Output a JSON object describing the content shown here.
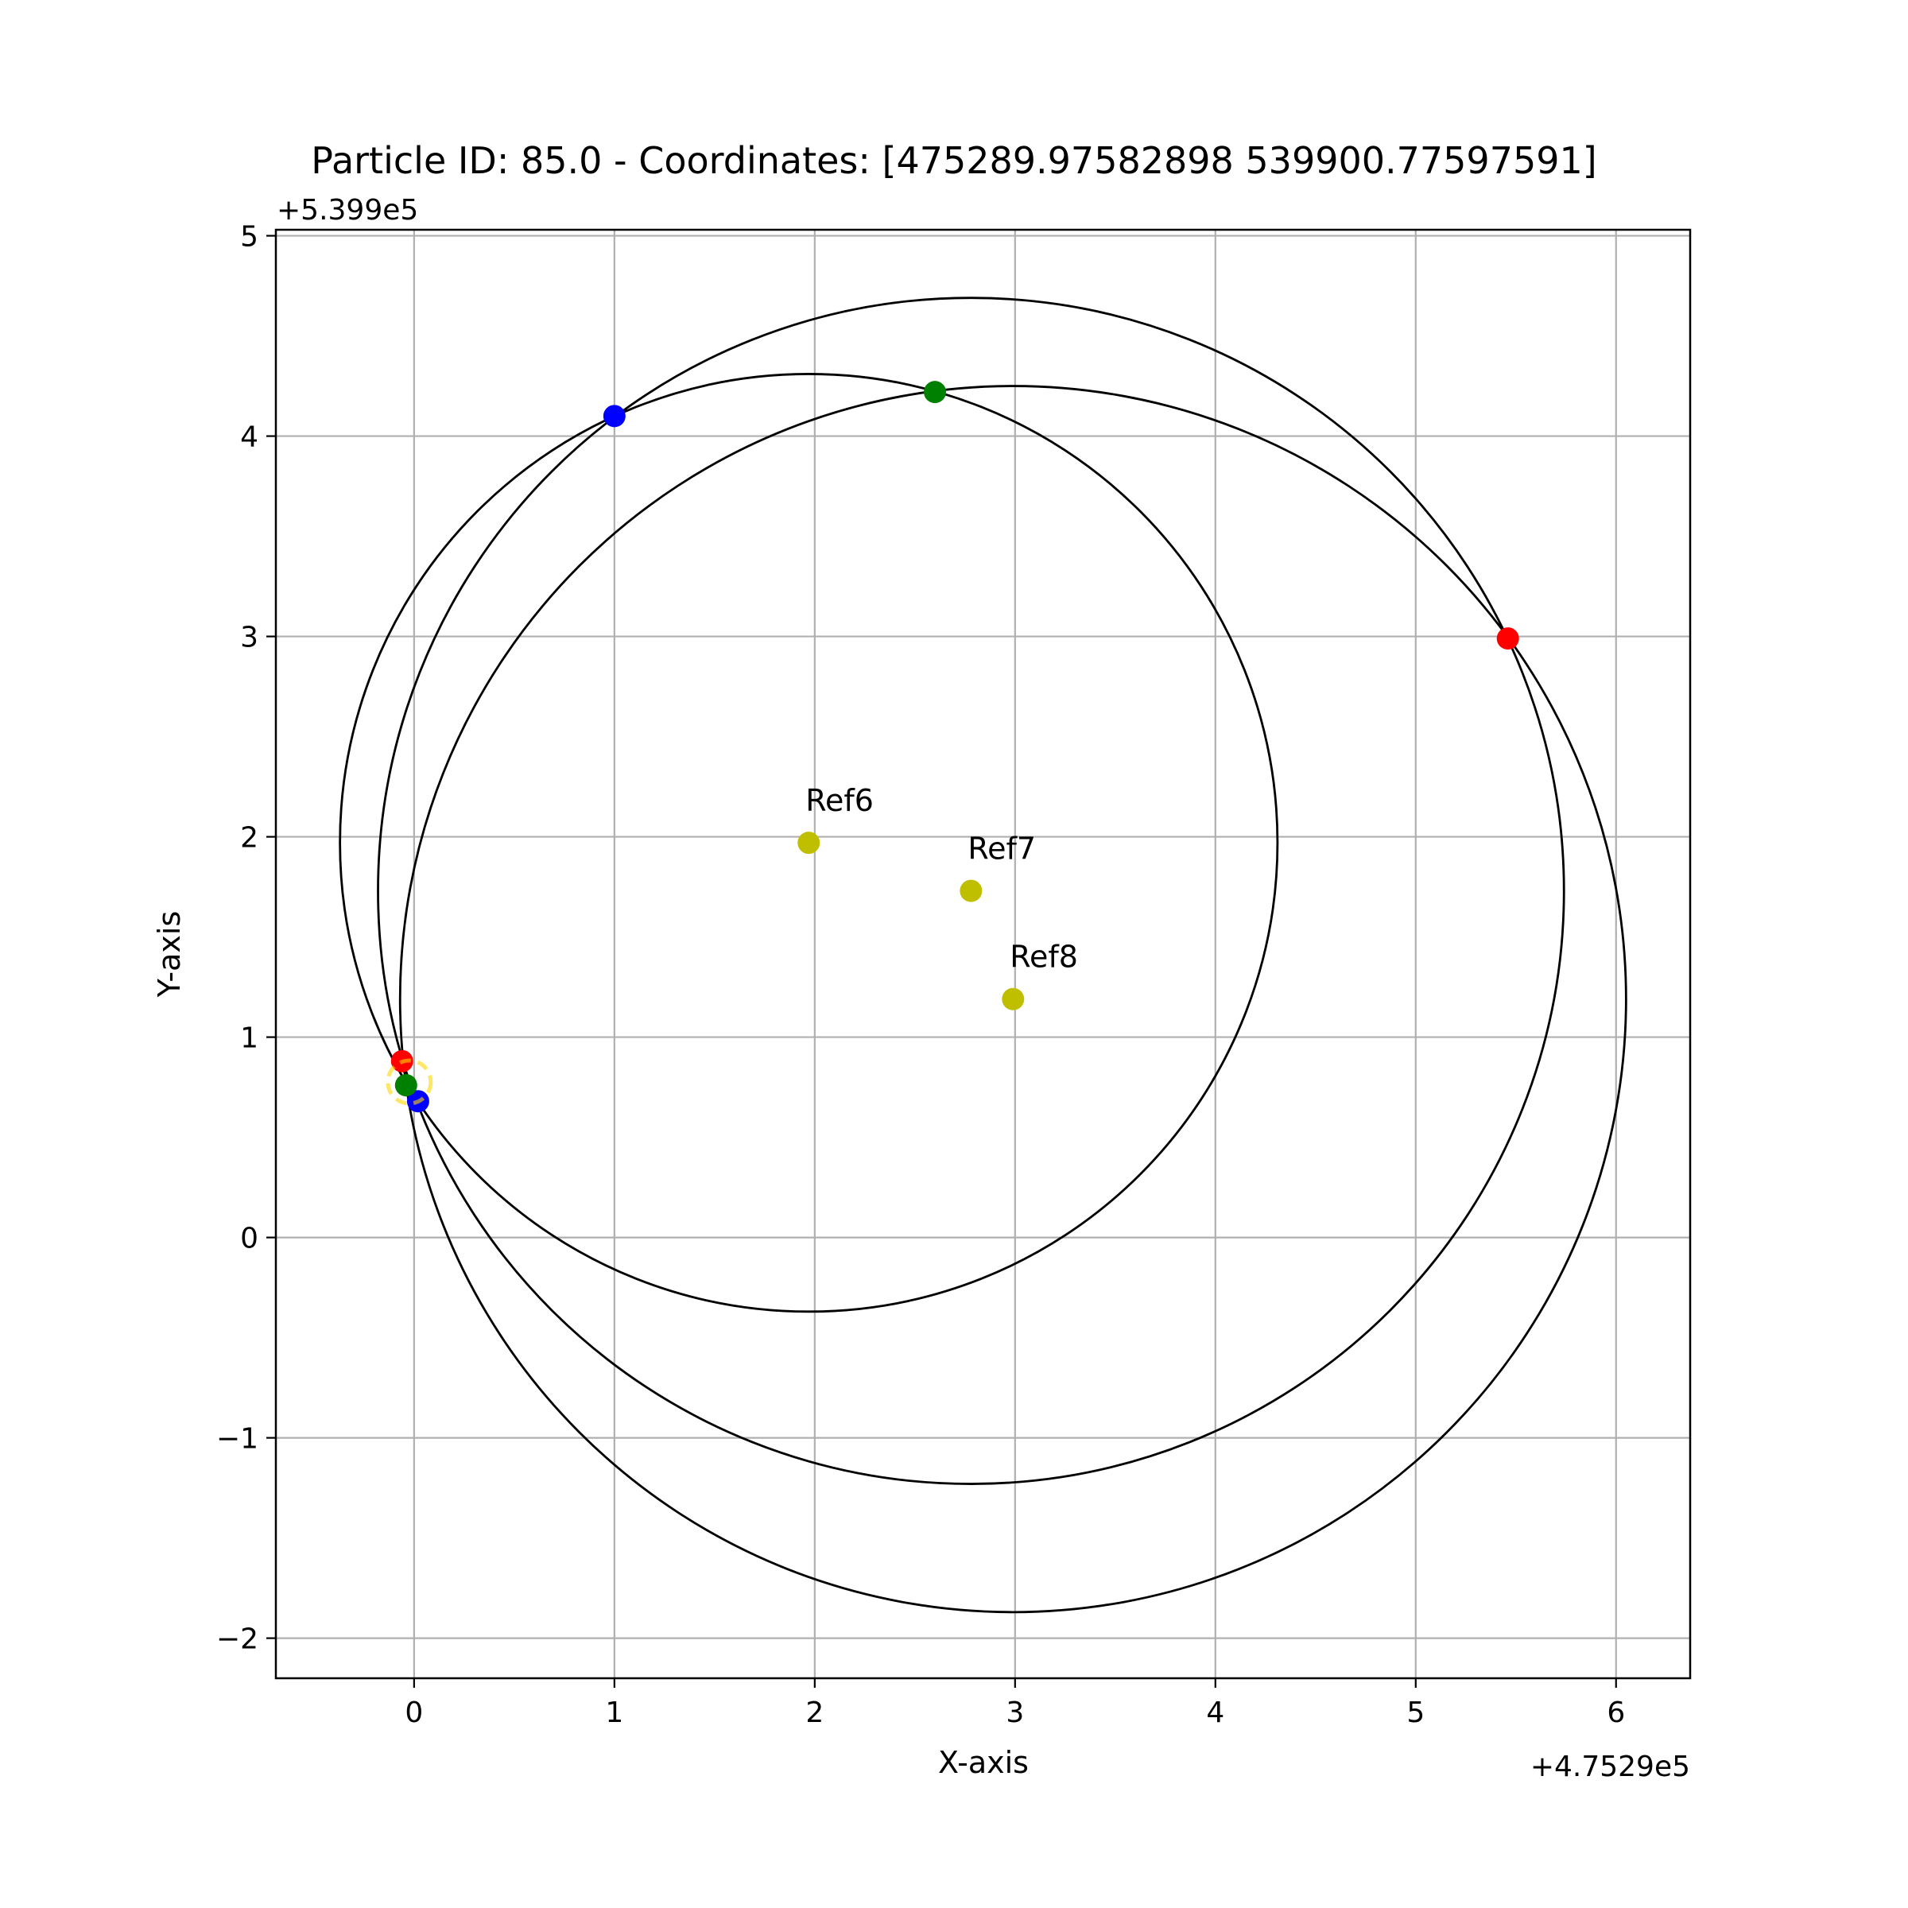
{
  "chart_data": {
    "type": "scatter",
    "title": "Particle ID: 85.0 - Coordinates: [475289.97582898 539900.77597591]",
    "xlabel": "X-axis",
    "ylabel": "Y-axis",
    "x_offset_label": "+4.7529e5",
    "y_offset_label": "+5.399e5",
    "xlim": [
      -0.69,
      6.37
    ],
    "ylim": [
      -2.2,
      5.03
    ],
    "x_ticks": [
      0,
      1,
      2,
      3,
      4,
      5,
      6
    ],
    "x_tick_labels": [
      "0",
      "1",
      "2",
      "3",
      "4",
      "5",
      "6"
    ],
    "y_ticks": [
      -2,
      -1,
      0,
      1,
      2,
      3,
      4,
      5
    ],
    "y_tick_labels": [
      "−2",
      "−1",
      "0",
      "1",
      "2",
      "3",
      "4",
      "5"
    ],
    "grid": true,
    "references": [
      {
        "label": "Ref6",
        "x": 1.97,
        "y": 1.97
      },
      {
        "label": "Ref7",
        "x": 2.78,
        "y": 1.73
      },
      {
        "label": "Ref8",
        "x": 2.99,
        "y": 1.19
      }
    ],
    "circles": [
      {
        "center_x": 1.97,
        "center_y": 1.97,
        "radius": 2.34
      },
      {
        "center_x": 2.78,
        "center_y": 1.73,
        "radius": 2.96
      },
      {
        "center_x": 2.99,
        "center_y": 1.19,
        "radius": 3.06
      }
    ],
    "intersection_points": [
      {
        "x": 1.0,
        "y": 4.1,
        "color": "#0000ff"
      },
      {
        "x": 0.02,
        "y": 0.68,
        "color": "#0000ff"
      },
      {
        "x": 2.6,
        "y": 4.22,
        "color": "#008000"
      },
      {
        "x": -0.04,
        "y": 0.76,
        "color": "#008000"
      },
      {
        "x": 5.46,
        "y": 2.99,
        "color": "#ff0000"
      },
      {
        "x": -0.06,
        "y": 0.88,
        "color": "#ff0000"
      }
    ],
    "estimate": {
      "x": -0.024,
      "y": 0.776,
      "color": "#ffd700"
    },
    "colors": {
      "reference": "#bfbf00",
      "circle": "#000000",
      "grid": "#b0b0b0"
    }
  }
}
